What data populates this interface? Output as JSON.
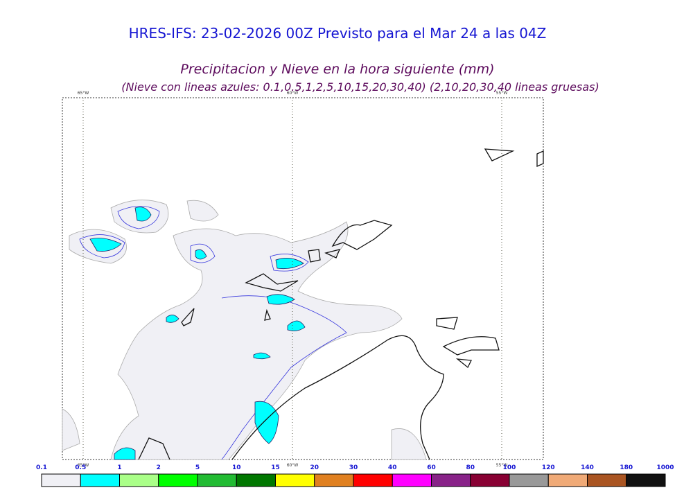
{
  "header": {
    "title": "HRES-IFS: 23-02-2026 00Z Previsto para el Mar 24 a las 04Z",
    "subtitle": "Precipitacion y Nieve en la hora siguiente (mm)",
    "note": "(Nieve con lineas azules: 0.1,0.5,1,2,5,10,15,20,30,40)  (2,10,20,30,40 lineas gruesas)"
  },
  "map": {
    "longitudes": [
      "65°W",
      "60°W",
      "55°W"
    ]
  },
  "colorbar": {
    "labels": [
      0.1,
      0.5,
      1,
      2,
      5,
      10,
      15,
      20,
      30,
      40,
      60,
      80,
      100,
      120,
      140,
      180,
      1000
    ],
    "colors": [
      "#f0f0f5",
      "#00ffff",
      "#aaff88",
      "#00ff00",
      "#22bb33",
      "#007700",
      "#ffff00",
      "#e08020",
      "#ff0000",
      "#ff00ff",
      "#882288",
      "#880033",
      "#999999",
      "#f0aa77",
      "#aa5522",
      "#111111"
    ]
  }
}
